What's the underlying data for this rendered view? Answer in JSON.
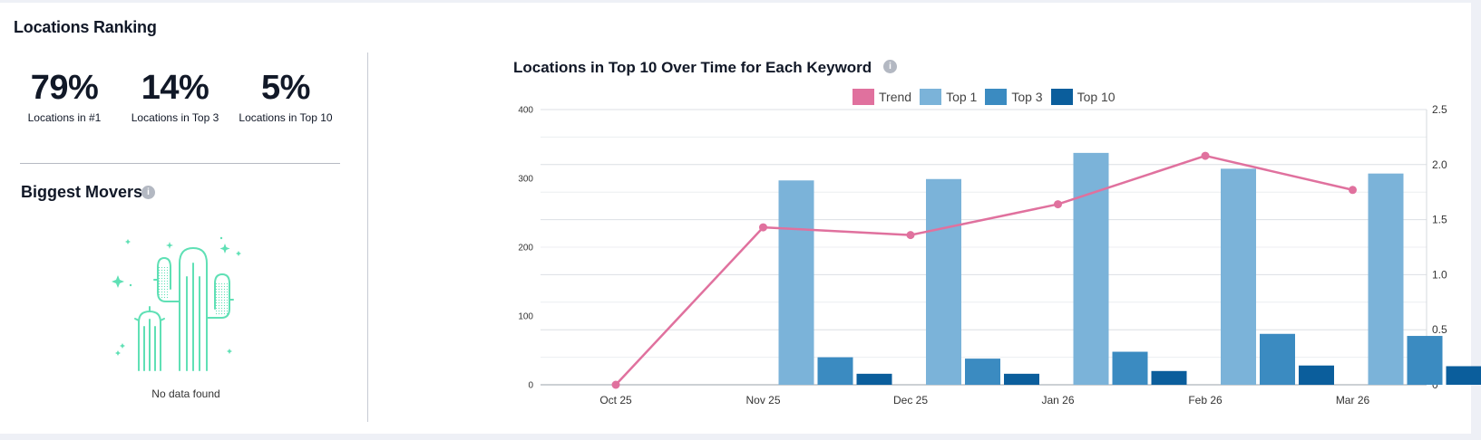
{
  "title": "Locations Ranking",
  "stats": [
    {
      "value": "79%",
      "label": "Locations in #1"
    },
    {
      "value": "14%",
      "label": "Locations in Top 3"
    },
    {
      "value": "5%",
      "label": "Locations in Top 10"
    }
  ],
  "movers": {
    "title": "Biggest Movers",
    "info_icon": "i",
    "empty_text": "No data found",
    "illustration": "cactus-icon"
  },
  "chart": {
    "title": "Locations in Top 10 Over Time for Each Keyword",
    "info_icon": "i",
    "legend": [
      {
        "name": "Trend",
        "color": "#e0719e"
      },
      {
        "name": "Top 1",
        "color": "#7bb3d9"
      },
      {
        "name": "Top 3",
        "color": "#3b8bc1"
      },
      {
        "name": "Top 10",
        "color": "#0b5e9c"
      }
    ]
  },
  "chart_data": {
    "type": "bar",
    "categories": [
      "Oct 25",
      "Nov 25",
      "Dec 25",
      "Jan 26",
      "Feb 26",
      "Mar 26"
    ],
    "series": [
      {
        "name": "Top 1",
        "values": [
          0,
          297,
          299,
          337,
          314,
          307
        ],
        "axis": "left"
      },
      {
        "name": "Top 3",
        "values": [
          0,
          40,
          38,
          48,
          74,
          71
        ],
        "axis": "left"
      },
      {
        "name": "Top 10",
        "values": [
          0,
          16,
          16,
          20,
          28,
          27
        ],
        "axis": "left"
      },
      {
        "name": "Trend",
        "type": "line",
        "values": [
          0,
          1.43,
          1.36,
          1.64,
          2.08,
          1.77
        ],
        "axis": "right"
      }
    ],
    "ylim_left": [
      0,
      400
    ],
    "yticks_left": [
      "0",
      "100",
      "200",
      "300",
      "400"
    ],
    "ylim_right": [
      0,
      2.5
    ],
    "yticks_right": [
      "0",
      "0.5",
      "1.0",
      "1.5",
      "2.0",
      "2.5"
    ],
    "grid": true,
    "legend_position": "top"
  }
}
